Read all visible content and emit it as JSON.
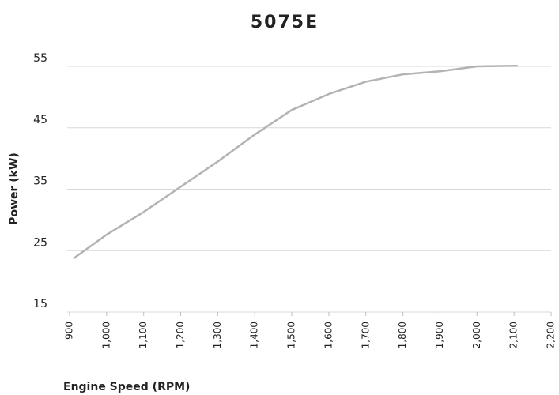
{
  "chart_data": {
    "type": "line",
    "title": "5075E",
    "x_label": "Engine Speed (RPM)",
    "y_label": "Power (kW)",
    "x": [
      910,
      1000,
      1100,
      1200,
      1300,
      1400,
      1500,
      1600,
      1700,
      1800,
      1900,
      2000,
      2110
    ],
    "series": [
      {
        "name": "Power",
        "color": "#b3b3b3",
        "values": [
          23.7,
          27.6,
          31.3,
          35.4,
          39.5,
          43.9,
          47.9,
          50.5,
          52.5,
          53.7,
          54.2,
          55.0,
          55.1
        ]
      }
    ],
    "xlim": [
      900,
      2200
    ],
    "xticks": [
      900,
      {
        "value": 1000,
        "label": "1,000"
      },
      {
        "value": 1100,
        "label": "1,100"
      },
      {
        "value": 1200,
        "label": "1,200"
      },
      {
        "value": 1300,
        "label": "1,300"
      },
      {
        "value": 1400,
        "label": "1,400"
      },
      {
        "value": 1500,
        "label": "1,500"
      },
      {
        "value": 1600,
        "label": "1,600"
      },
      {
        "value": 1700,
        "label": "1,700"
      },
      {
        "value": 1800,
        "label": "1,800"
      },
      {
        "value": 1900,
        "label": "1,900"
      },
      {
        "value": 2000,
        "label": "2,000"
      },
      {
        "value": 2100,
        "label": "2,100"
      },
      {
        "value": 2200,
        "label": "2,200"
      }
    ],
    "ylim": [
      15,
      55
    ],
    "yticks": [
      15,
      25,
      35,
      45,
      55
    ],
    "grid": true
  }
}
